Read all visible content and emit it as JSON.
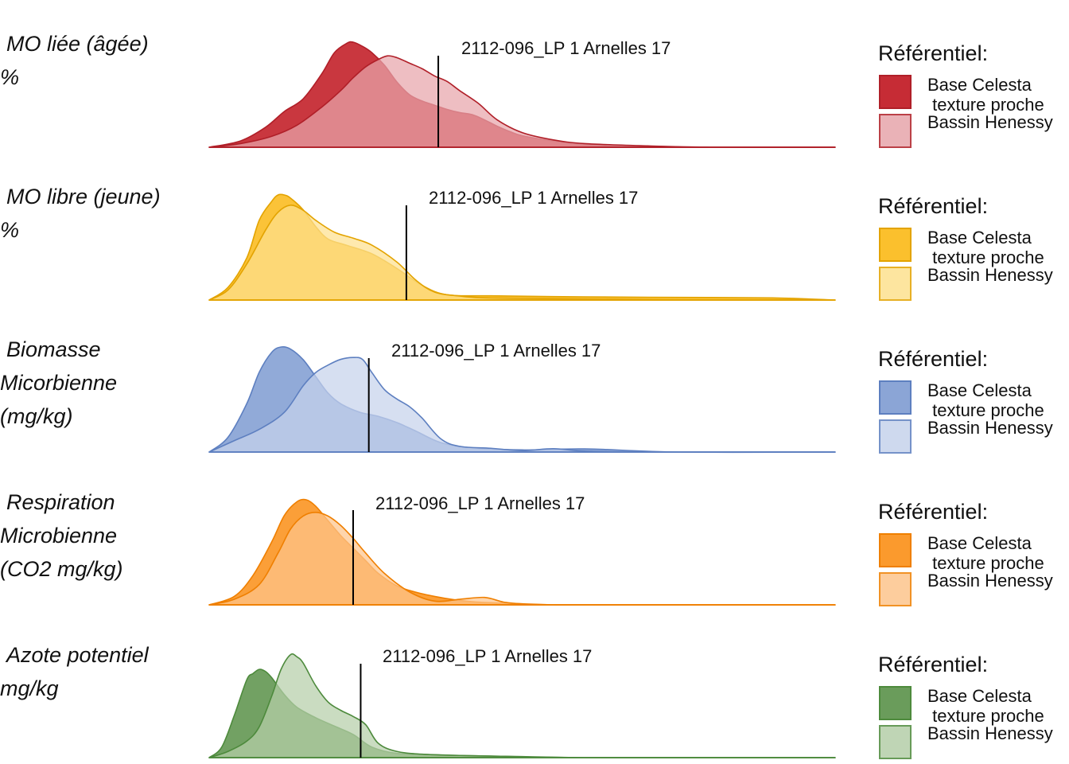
{
  "rows": [
    {
      "id": "mo-liee",
      "label_lines": [
        "MO liée (âgée)",
        "%"
      ],
      "sample_label": "2112-096_LP 1 Arnelles 17",
      "legend_title": "Référentiel:",
      "legend_items": [
        "Base Celesta\n texture proche",
        "Bassin Henessy"
      ],
      "colors": {
        "base_fill": "#c62c35",
        "base_stroke": "#b01f28",
        "bassin_fill": "#e7a5ab",
        "bassin_stroke": "#b01f28"
      },
      "marker_x": 0.366,
      "chart_data": {
        "type": "area",
        "xlim": [
          0,
          1
        ],
        "series": [
          {
            "name": "Base Celesta texture proche",
            "x": [
              0.0,
              0.05,
              0.09,
              0.12,
              0.15,
              0.18,
              0.2,
              0.22,
              0.23,
              0.245,
              0.26,
              0.28,
              0.3,
              0.32,
              0.34,
              0.36,
              0.38,
              0.4,
              0.42,
              0.44,
              0.46,
              0.48,
              0.5,
              0.55,
              0.6,
              0.7,
              0.8,
              1.0
            ],
            "y": [
              0.0,
              0.06,
              0.19,
              0.34,
              0.46,
              0.7,
              0.9,
              0.99,
              1.0,
              0.96,
              0.9,
              0.78,
              0.62,
              0.5,
              0.44,
              0.4,
              0.36,
              0.33,
              0.31,
              0.26,
              0.2,
              0.15,
              0.11,
              0.06,
              0.03,
              0.01,
              0.0,
              0.0
            ]
          },
          {
            "name": "Bassin Henessy",
            "x": [
              0.0,
              0.05,
              0.1,
              0.14,
              0.18,
              0.21,
              0.23,
              0.25,
              0.27,
              0.285,
              0.3,
              0.32,
              0.34,
              0.36,
              0.38,
              0.4,
              0.43,
              0.46,
              0.5,
              0.55,
              0.6,
              0.7,
              0.8,
              1.0
            ],
            "y": [
              0.0,
              0.04,
              0.12,
              0.24,
              0.44,
              0.62,
              0.76,
              0.88,
              0.96,
              1.0,
              0.98,
              0.92,
              0.86,
              0.78,
              0.72,
              0.62,
              0.48,
              0.3,
              0.16,
              0.08,
              0.04,
              0.015,
              0.0,
              0.0
            ]
          }
        ]
      }
    },
    {
      "id": "mo-libre",
      "label_lines": [
        "MO libre (jeune)",
        "%"
      ],
      "sample_label": "2112-096_LP 1 Arnelles 17",
      "legend_title": "Référentiel:",
      "legend_items": [
        "Base Celesta\n texture proche",
        "Bassin Henessy"
      ],
      "colors": {
        "base_fill": "#fbc02d",
        "base_stroke": "#e3a300",
        "bassin_fill": "#fde18f",
        "bassin_stroke": "#e3a300"
      },
      "marker_x": 0.315,
      "chart_data": {
        "type": "area",
        "xlim": [
          0,
          1
        ],
        "series": [
          {
            "name": "Base Celesta texture proche",
            "x": [
              0.0,
              0.03,
              0.06,
              0.08,
              0.1,
              0.11,
              0.12,
              0.13,
              0.15,
              0.17,
              0.19,
              0.22,
              0.26,
              0.3,
              0.34,
              0.38,
              0.45,
              0.6,
              0.75,
              0.9,
              1.0
            ],
            "y": [
              0.0,
              0.12,
              0.4,
              0.76,
              0.94,
              1.0,
              1.0,
              0.97,
              0.86,
              0.7,
              0.58,
              0.52,
              0.44,
              0.3,
              0.14,
              0.05,
              0.04,
              0.03,
              0.025,
              0.02,
              0.0
            ]
          },
          {
            "name": "Bassin Henessy",
            "x": [
              0.0,
              0.03,
              0.06,
              0.09,
              0.11,
              0.13,
              0.15,
              0.17,
              0.2,
              0.23,
              0.26,
              0.3,
              0.33,
              0.36,
              0.4,
              0.45,
              0.6,
              0.8,
              1.0
            ],
            "y": [
              0.0,
              0.1,
              0.36,
              0.7,
              0.88,
              0.95,
              0.9,
              0.8,
              0.68,
              0.62,
              0.55,
              0.38,
              0.2,
              0.08,
              0.04,
              0.02,
              0.01,
              0.0,
              0.0
            ]
          }
        ]
      }
    },
    {
      "id": "biomasse",
      "label_lines": [
        "Biomasse",
        "Micorbienne",
        "(mg/kg)"
      ],
      "sample_label": "2112-096_LP 1 Arnelles 17",
      "legend_title": "Référentiel:",
      "legend_items": [
        "Base Celesta\n texture proche",
        "Bassin Henessy"
      ],
      "colors": {
        "base_fill": "#8ba5d6",
        "base_stroke": "#5d7fc0",
        "bassin_fill": "#c6d3ec",
        "bassin_stroke": "#5d7fc0"
      },
      "marker_x": 0.255,
      "chart_data": {
        "type": "area",
        "xlim": [
          0,
          1
        ],
        "series": [
          {
            "name": "Base Celesta texture proche",
            "x": [
              0.0,
              0.03,
              0.06,
              0.08,
              0.1,
              0.115,
              0.13,
              0.15,
              0.17,
              0.19,
              0.21,
              0.24,
              0.27,
              0.3,
              0.33,
              0.37,
              0.42,
              0.5,
              0.6,
              0.75,
              1.0
            ],
            "y": [
              0.0,
              0.14,
              0.46,
              0.76,
              0.95,
              1.0,
              0.98,
              0.88,
              0.72,
              0.56,
              0.46,
              0.38,
              0.34,
              0.28,
              0.2,
              0.09,
              0.04,
              0.02,
              0.03,
              0.0,
              0.0
            ]
          },
          {
            "name": "Bassin Henessy",
            "x": [
              0.0,
              0.04,
              0.08,
              0.12,
              0.15,
              0.17,
              0.19,
              0.21,
              0.23,
              0.245,
              0.26,
              0.28,
              0.3,
              0.32,
              0.34,
              0.37,
              0.4,
              0.45,
              0.5,
              0.55,
              0.6,
              0.7,
              1.0
            ],
            "y": [
              0.0,
              0.12,
              0.24,
              0.42,
              0.7,
              0.84,
              0.92,
              0.98,
              1.0,
              0.98,
              0.84,
              0.66,
              0.56,
              0.48,
              0.36,
              0.14,
              0.06,
              0.04,
              0.015,
              0.035,
              0.01,
              0.0,
              0.0
            ]
          }
        ]
      }
    },
    {
      "id": "respiration",
      "label_lines": [
        "Respiration",
        "Microbienne",
        "(CO2 mg/kg)"
      ],
      "sample_label": "2112-096_LP 1 Arnelles 17",
      "legend_title": "Référentiel:",
      "legend_items": [
        "Base Celesta\n texture proche",
        "Bassin Henessy"
      ],
      "colors": {
        "base_fill": "#fb9a2d",
        "base_stroke": "#ef7f00",
        "bassin_fill": "#fdc58c",
        "bassin_stroke": "#ef7f00"
      },
      "marker_x": 0.23,
      "chart_data": {
        "type": "area",
        "xlim": [
          0,
          1
        ],
        "series": [
          {
            "name": "Base Celesta texture proche",
            "x": [
              0.0,
              0.04,
              0.07,
              0.1,
              0.12,
              0.14,
              0.155,
              0.17,
              0.19,
              0.21,
              0.23,
              0.25,
              0.27,
              0.3,
              0.33,
              0.36,
              0.39,
              0.42,
              0.45,
              0.5,
              0.55,
              0.6,
              1.0
            ],
            "y": [
              0.0,
              0.08,
              0.28,
              0.6,
              0.85,
              0.98,
              1.0,
              0.94,
              0.8,
              0.66,
              0.54,
              0.42,
              0.3,
              0.18,
              0.12,
              0.08,
              0.05,
              0.03,
              0.02,
              0.01,
              0.0,
              0.0,
              0.0
            ]
          },
          {
            "name": "Bassin Henessy",
            "x": [
              0.0,
              0.04,
              0.08,
              0.11,
              0.13,
              0.15,
              0.17,
              0.19,
              0.21,
              0.23,
              0.25,
              0.28,
              0.32,
              0.36,
              0.4,
              0.44,
              0.47,
              0.5,
              0.55,
              1.0
            ],
            "y": [
              0.0,
              0.06,
              0.22,
              0.56,
              0.82,
              0.96,
              1.0,
              0.96,
              0.86,
              0.72,
              0.56,
              0.34,
              0.14,
              0.04,
              0.06,
              0.08,
              0.03,
              0.01,
              0.0,
              0.0
            ]
          }
        ]
      }
    },
    {
      "id": "azote",
      "label_lines": [
        "Azote potentiel",
        "mg/kg"
      ],
      "sample_label": "2112-096_LP 1 Arnelles 17",
      "legend_title": "Référentiel:",
      "legend_items": [
        "Base Celesta\n texture proche",
        "Bassin Henessy"
      ],
      "colors": {
        "base_fill": "#6a9c5b",
        "base_stroke": "#4d8a3c",
        "bassin_fill": "#b5cea9",
        "bassin_stroke": "#4d8a3c"
      },
      "marker_x": 0.242,
      "chart_data": {
        "type": "area",
        "xlim": [
          0,
          1
        ],
        "series": [
          {
            "name": "Base Celesta texture proche",
            "x": [
              0.0,
              0.02,
              0.04,
              0.06,
              0.07,
              0.08,
              0.09,
              0.1,
              0.12,
              0.14,
              0.17,
              0.2,
              0.23,
              0.26,
              0.3,
              0.35,
              0.4,
              0.5,
              0.6,
              0.8,
              1.0
            ],
            "y": [
              0.0,
              0.1,
              0.4,
              0.74,
              0.8,
              0.84,
              0.82,
              0.76,
              0.6,
              0.48,
              0.38,
              0.3,
              0.22,
              0.1,
              0.04,
              0.03,
              0.02,
              0.01,
              0.0,
              0.0,
              0.0
            ]
          },
          {
            "name": "Bassin Henessy",
            "x": [
              0.0,
              0.03,
              0.06,
              0.08,
              0.1,
              0.115,
              0.13,
              0.14,
              0.15,
              0.17,
              0.19,
              0.21,
              0.23,
              0.25,
              0.27,
              0.3,
              0.35,
              0.45,
              0.6,
              1.0
            ],
            "y": [
              0.0,
              0.06,
              0.16,
              0.3,
              0.6,
              0.86,
              1.0,
              0.98,
              0.92,
              0.7,
              0.54,
              0.46,
              0.4,
              0.32,
              0.14,
              0.06,
              0.03,
              0.015,
              0.0,
              0.0
            ]
          }
        ]
      }
    }
  ]
}
